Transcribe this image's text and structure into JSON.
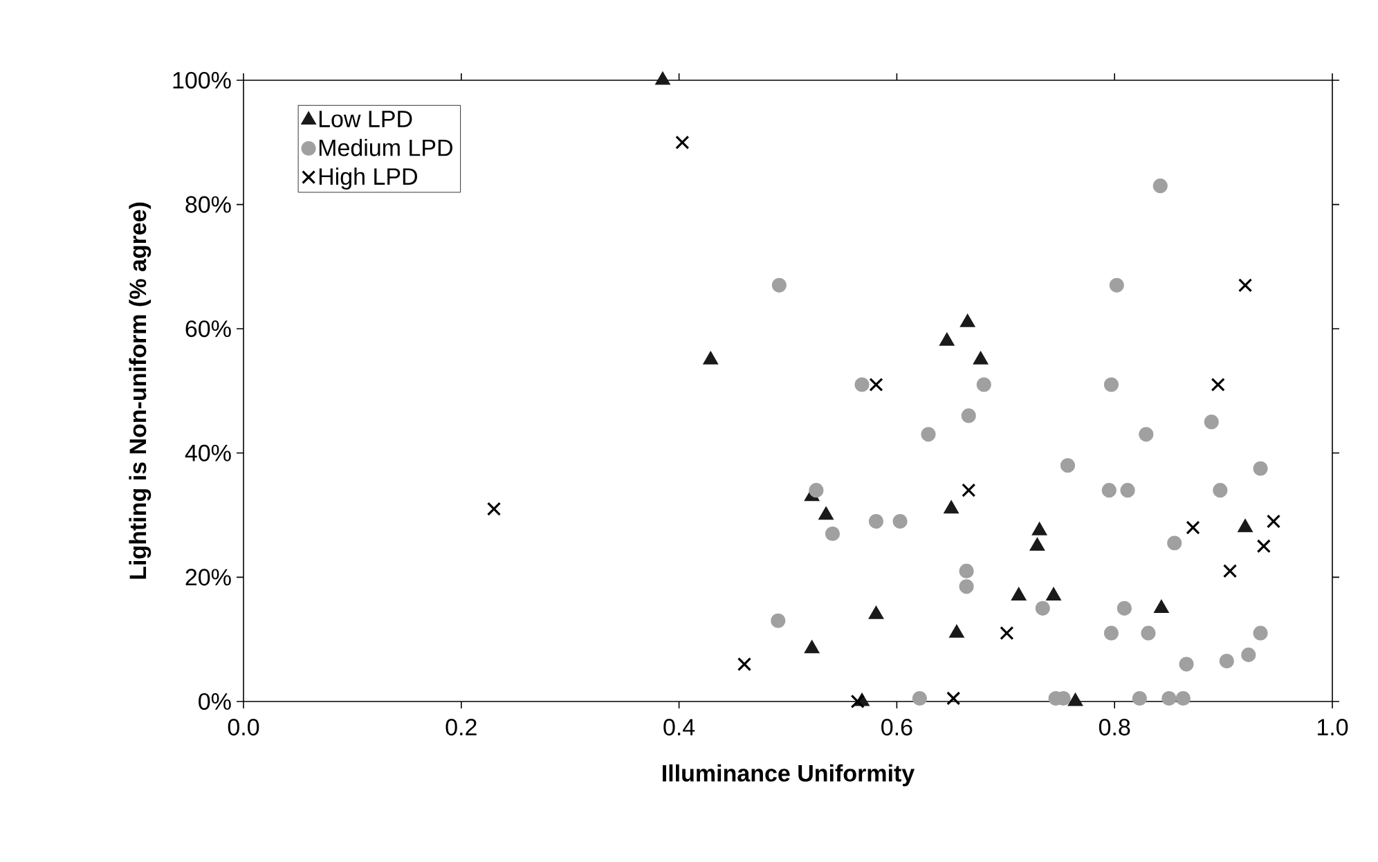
{
  "chart_data": {
    "type": "scatter",
    "xlabel": "Illuminance Uniformity",
    "ylabel": "Lighting is Non-uniform (% agree)",
    "xlim": [
      0,
      1
    ],
    "ylim": [
      0,
      100
    ],
    "xticks": [
      {
        "value": 0,
        "label": "0.0"
      },
      {
        "value": 0.2,
        "label": "0.2"
      },
      {
        "value": 0.4,
        "label": "0.4"
      },
      {
        "value": 0.6,
        "label": "0.6"
      },
      {
        "value": 0.8,
        "label": "0.8"
      },
      {
        "value": 1,
        "label": "1.0"
      }
    ],
    "yticks": [
      {
        "value": 0,
        "label": "0%"
      },
      {
        "value": 20,
        "label": "20%"
      },
      {
        "value": 40,
        "label": "40%"
      },
      {
        "value": 60,
        "label": "60%"
      },
      {
        "value": 80,
        "label": "80%"
      },
      {
        "value": 100,
        "label": "100%"
      }
    ],
    "grid": false,
    "legend": "top left",
    "series": [
      {
        "name": "Low LPD",
        "color": "#1a1a1a",
        "marker": "triangle",
        "x": [
          0.385,
          0.429,
          0.665,
          0.646,
          0.677,
          0.65,
          0.522,
          0.535,
          0.581,
          0.522,
          0.655,
          0.568,
          0.731,
          0.729,
          0.92,
          0.712,
          0.744,
          0.843,
          0.764
        ],
        "values": [
          100,
          55,
          61,
          58,
          55,
          31,
          33,
          30,
          14,
          8.5,
          11,
          0,
          27.5,
          25,
          28,
          17,
          17,
          15,
          0
        ]
      },
      {
        "name": "Medium LPD",
        "color": "#a0a0a0",
        "marker": "circle",
        "x": [
          0.492,
          0.491,
          0.568,
          0.68,
          0.666,
          0.629,
          0.526,
          0.541,
          0.581,
          0.603,
          0.664,
          0.664,
          0.621,
          0.842,
          0.802,
          0.797,
          0.889,
          0.829,
          0.757,
          0.934,
          0.795,
          0.812,
          0.897,
          0.855,
          0.734,
          0.809,
          0.797,
          0.831,
          0.934,
          0.866,
          0.903,
          0.923,
          0.746,
          0.753,
          0.823,
          0.85,
          0.863
        ],
        "values": [
          67,
          13,
          51,
          51,
          46,
          43,
          34,
          27,
          29,
          29,
          21,
          18.5,
          0.5,
          83,
          67,
          51,
          45,
          43,
          38,
          37.5,
          34,
          34,
          34,
          25.5,
          15,
          15,
          11,
          11,
          11,
          6,
          6.5,
          7.5,
          0.5,
          0.5,
          0.5,
          0.5,
          0.5
        ]
      },
      {
        "name": "High LPD",
        "color": "#000000",
        "marker": "cross",
        "x": [
          0.403,
          0.23,
          0.46,
          0.581,
          0.666,
          0.564,
          0.652,
          0.701,
          0.92,
          0.895,
          0.872,
          0.946,
          0.937,
          0.906
        ],
        "values": [
          90,
          31,
          6,
          51,
          34,
          0,
          0.5,
          11,
          67,
          51,
          28,
          29,
          25,
          21
        ]
      }
    ]
  }
}
